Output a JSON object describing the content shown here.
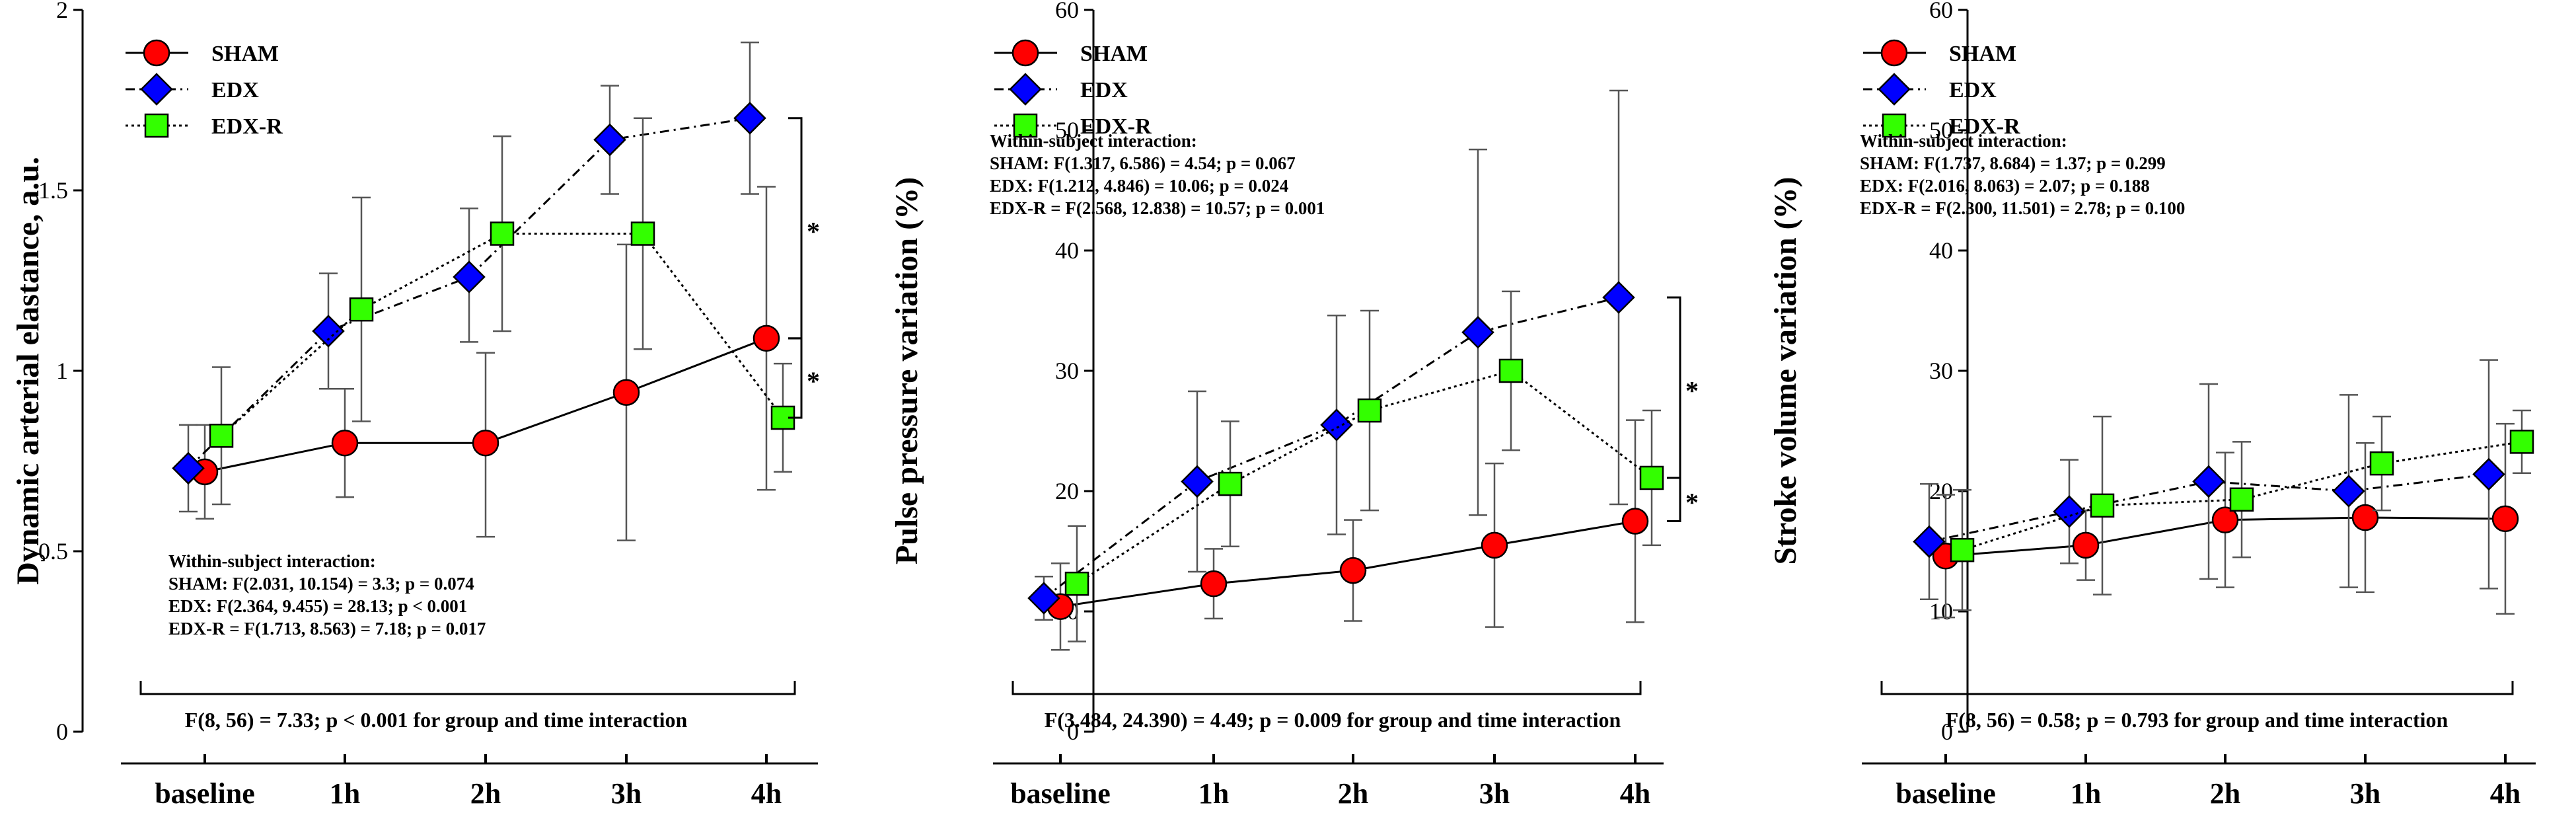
{
  "chart_data": [
    {
      "type": "line",
      "ylabel": "Dynamic arterial elastance, a.u.",
      "ylim": [
        0,
        2
      ],
      "yticks": [
        "0",
        "0.5",
        "1",
        "1.5",
        "2"
      ],
      "categories": [
        "baseline",
        "1h",
        "2h",
        "3h",
        "4h"
      ],
      "series": [
        {
          "name": "SHAM",
          "marker": "circle",
          "color": "#ff0000",
          "line": "solid",
          "values": [
            0.72,
            0.8,
            0.8,
            0.94,
            1.09
          ],
          "err_low": [
            0.59,
            0.65,
            0.54,
            0.53,
            0.67
          ],
          "err_high": [
            0.85,
            0.95,
            1.05,
            1.35,
            1.51
          ]
        },
        {
          "name": "EDX",
          "marker": "diamond",
          "color": "#0000ff",
          "line": "dashdot",
          "values": [
            0.73,
            1.11,
            1.26,
            1.64,
            1.7
          ],
          "err_low": [
            0.61,
            0.95,
            1.08,
            1.49,
            1.49
          ],
          "err_high": [
            0.85,
            1.27,
            1.45,
            1.79,
            1.91
          ]
        },
        {
          "name": "EDX-R",
          "marker": "square",
          "color": "#33ff00",
          "line": "dotted",
          "values": [
            0.82,
            1.17,
            1.38,
            1.38,
            0.87
          ],
          "err_low": [
            0.63,
            0.86,
            1.11,
            1.06,
            0.72
          ],
          "err_high": [
            1.01,
            1.48,
            1.65,
            1.7,
            1.02
          ]
        }
      ],
      "significance": [
        {
          "between": "EDX-SHAM",
          "at": "4h",
          "y_from": 1.7,
          "y_to": 1.09,
          "label": "*"
        },
        {
          "between": "SHAM-EDX-R",
          "at": "4h",
          "y_from": 1.09,
          "y_to": 0.87,
          "label": "*"
        }
      ],
      "interaction_title": "Within-subject interaction:",
      "interaction_lines": [
        "SHAM: F(2.031, 10.154) = 3.3; p = 0.074",
        "EDX: F(2.364, 9.455) = 28.13; p < 0.001",
        "EDX-R = F(1.713, 8.563) = 7.18; p = 0.017"
      ],
      "group_time_stat": "F(8, 56) = 7.33; p < 0.001 for group and time interaction"
    },
    {
      "type": "line",
      "ylabel": "Pulse pressure variation (%)",
      "ylim": [
        0,
        60
      ],
      "yticks": [
        "0",
        "10",
        "20",
        "30",
        "40",
        "50",
        "60"
      ],
      "categories": [
        "baseline",
        "1h",
        "2h",
        "3h",
        "4h"
      ],
      "series": [
        {
          "name": "SHAM",
          "marker": "circle",
          "color": "#ff0000",
          "line": "solid",
          "values": [
            10.4,
            12.3,
            13.4,
            15.5,
            17.5
          ],
          "err_low": [
            6.8,
            9.4,
            9.2,
            8.7,
            9.1
          ],
          "err_high": [
            14.0,
            15.2,
            17.6,
            22.3,
            25.9
          ]
        },
        {
          "name": "EDX",
          "marker": "diamond",
          "color": "#0000ff",
          "line": "dashdot",
          "values": [
            11.1,
            20.8,
            25.5,
            33.2,
            36.1
          ],
          "err_low": [
            9.3,
            13.3,
            16.4,
            18.0,
            18.9
          ],
          "err_high": [
            12.9,
            28.3,
            34.6,
            48.4,
            53.3
          ]
        },
        {
          "name": "EDX-R",
          "marker": "square",
          "color": "#33ff00",
          "line": "dotted",
          "values": [
            12.3,
            20.6,
            26.7,
            30.0,
            21.1
          ],
          "err_low": [
            7.5,
            15.4,
            18.4,
            23.4,
            15.5
          ],
          "err_high": [
            17.1,
            25.8,
            35.0,
            36.6,
            26.7
          ]
        }
      ],
      "significance": [
        {
          "between": "EDX-EDX-R",
          "at": "4h",
          "y_from": 36.1,
          "y_to": 21.1,
          "label": "*"
        },
        {
          "between": "EDX-R-SHAM",
          "at": "4h",
          "y_from": 21.1,
          "y_to": 17.5,
          "label": "*"
        }
      ],
      "interaction_title": "Within-subject interaction:",
      "interaction_lines": [
        "SHAM: F(1.317, 6.586) = 4.54; p = 0.067",
        "EDX: F(1.212, 4.846) = 10.06; p = 0.024",
        "EDX-R = F(2.568, 12.838) = 10.57; p = 0.001"
      ],
      "group_time_stat": "F(3.484, 24.390) = 4.49; p = 0.009 for group and time interaction"
    },
    {
      "type": "line",
      "ylabel": "Stroke volume variation (%)",
      "ylim": [
        0,
        60
      ],
      "yticks": [
        "0",
        "10",
        "20",
        "30",
        "40",
        "50",
        "60"
      ],
      "categories": [
        "baseline",
        "1h",
        "2h",
        "3h",
        "4h"
      ],
      "series": [
        {
          "name": "SHAM",
          "marker": "circle",
          "color": "#ff0000",
          "line": "solid",
          "values": [
            14.6,
            15.5,
            17.6,
            17.8,
            17.7
          ],
          "err_low": [
            9.5,
            12.6,
            12.0,
            11.6,
            9.8
          ],
          "err_high": [
            19.7,
            18.4,
            23.2,
            24.0,
            25.6
          ]
        },
        {
          "name": "EDX",
          "marker": "diamond",
          "color": "#0000ff",
          "line": "dashdot",
          "values": [
            15.8,
            18.3,
            20.8,
            20.0,
            21.4
          ],
          "err_low": [
            11.0,
            14.0,
            12.7,
            12.0,
            11.9
          ],
          "err_high": [
            20.6,
            22.6,
            28.9,
            28.0,
            30.9
          ]
        },
        {
          "name": "EDX-R",
          "marker": "square",
          "color": "#33ff00",
          "line": "dotted",
          "values": [
            15.1,
            18.8,
            19.3,
            22.3,
            24.1
          ],
          "err_low": [
            10.1,
            11.4,
            14.5,
            18.4,
            21.5
          ],
          "err_high": [
            20.1,
            26.2,
            24.1,
            26.2,
            26.7
          ]
        }
      ],
      "significance": [],
      "interaction_title": "Within-subject interaction:",
      "interaction_lines": [
        "SHAM: F(1.737, 8.684) = 1.37; p = 0.299",
        "EDX: F(2.016, 8.063) = 2.07; p = 0.188",
        "EDX-R = F(2.300, 11.501) = 2.78; p = 0.100"
      ],
      "group_time_stat": "F(8, 56) = 0.58; p = 0.793 for group and time interaction"
    }
  ]
}
